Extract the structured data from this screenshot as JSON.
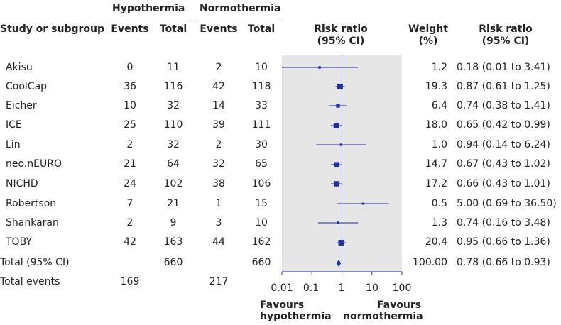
{
  "headers": {
    "group_a": "Hypothermia",
    "group_b": "Normothermia",
    "study": "Study or subgroup",
    "events": "Events",
    "total": "Total",
    "rr_plot": "Risk ratio",
    "rr_plot_ci": "(95% CI)",
    "weight": "Weight",
    "weight_unit": "(%)",
    "rr_text": "Risk ratio",
    "rr_text_ci": "(95% CI)"
  },
  "chart_data": {
    "type": "forest",
    "scale": "log",
    "xlim": [
      0.01,
      100
    ],
    "null_value": 1,
    "x_ticks": [
      "0.01",
      "0.1",
      "1",
      "10",
      "100"
    ],
    "favours_left": [
      "Favours",
      "hypothermia"
    ],
    "favours_right": [
      "Favours",
      "normothermia"
    ],
    "studies": [
      {
        "name": "Akisu",
        "events_a": "0",
        "total_a": "11",
        "events_b": "2",
        "total_b": "10",
        "weight": "1.2",
        "rr": 0.18,
        "lo": 0.01,
        "hi": 3.41,
        "rr_text": "0.18 (0.01 to 3.41)"
      },
      {
        "name": "CoolCap",
        "events_a": "36",
        "total_a": "116",
        "events_b": "42",
        "total_b": "118",
        "weight": "19.3",
        "rr": 0.87,
        "lo": 0.61,
        "hi": 1.25,
        "rr_text": "0.87 (0.61 to 1.25)"
      },
      {
        "name": "Eicher",
        "events_a": "10",
        "total_a": "32",
        "events_b": "14",
        "total_b": "33",
        "weight": "6.4",
        "rr": 0.74,
        "lo": 0.38,
        "hi": 1.41,
        "rr_text": "0.74 (0.38 to 1.41)"
      },
      {
        "name": "ICE",
        "events_a": "25",
        "total_a": "110",
        "events_b": "39",
        "total_b": "111",
        "weight": "18.0",
        "rr": 0.65,
        "lo": 0.42,
        "hi": 0.99,
        "rr_text": "0.65 (0.42 to 0.99)"
      },
      {
        "name": "Lin",
        "events_a": "2",
        "total_a": "32",
        "events_b": "2",
        "total_b": "30",
        "weight": "1.0",
        "rr": 0.94,
        "lo": 0.14,
        "hi": 6.24,
        "rr_text": "0.94 (0.14 to 6.24)"
      },
      {
        "name": "neo.nEURO",
        "events_a": "21",
        "total_a": "64",
        "events_b": "32",
        "total_b": "65",
        "weight": "14.7",
        "rr": 0.67,
        "lo": 0.43,
        "hi": 1.02,
        "rr_text": "0.67 (0.43 to 1.02)"
      },
      {
        "name": "NICHD",
        "events_a": "24",
        "total_a": "102",
        "events_b": "38",
        "total_b": "106",
        "weight": "17.2",
        "rr": 0.66,
        "lo": 0.43,
        "hi": 1.01,
        "rr_text": "0.66 (0.43 to 1.01)"
      },
      {
        "name": "Robertson",
        "events_a": "7",
        "total_a": "21",
        "events_b": "1",
        "total_b": "15",
        "weight": "0.5",
        "rr": 5.0,
        "lo": 0.69,
        "hi": 36.5,
        "rr_text": "5.00 (0.69 to 36.50)"
      },
      {
        "name": "Shankaran",
        "events_a": "2",
        "total_a": "9",
        "events_b": "3",
        "total_b": "10",
        "weight": "1.3",
        "rr": 0.74,
        "lo": 0.16,
        "hi": 3.48,
        "rr_text": "0.74 (0.16 to 3.48)"
      },
      {
        "name": "TOBY",
        "events_a": "42",
        "total_a": "163",
        "events_b": "44",
        "total_b": "162",
        "weight": "20.4",
        "rr": 0.95,
        "lo": 0.66,
        "hi": 1.36,
        "rr_text": "0.95 (0.66 to 1.36)"
      }
    ],
    "total": {
      "label": "Total (95% CI)",
      "total_a": "660",
      "total_b": "660",
      "weight": "100.00",
      "rr": 0.78,
      "lo": 0.66,
      "hi": 0.93,
      "rr_text": "0.78 (0.66 to 0.93)"
    },
    "total_events": {
      "label": "Total events",
      "events_a": "169",
      "events_b": "217"
    },
    "colors": {
      "line": "#1f2f9c",
      "panel": "#e6e6e6",
      "axis": "#1f2f9c"
    }
  }
}
